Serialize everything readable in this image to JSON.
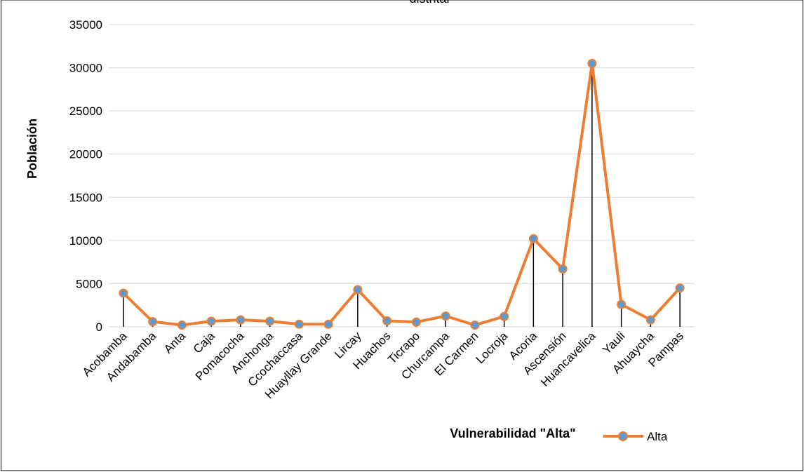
{
  "chart_data": {
    "type": "line",
    "title": "distrital",
    "xlabel": "Vulnerabilidad \"Alta\"",
    "ylabel": "Población",
    "ylim": [
      0,
      35000
    ],
    "yticks": [
      "0",
      "5000",
      "10000",
      "15000",
      "20000",
      "25000",
      "30000",
      "35000"
    ],
    "grid": true,
    "legend_position": "bottom-right",
    "categories": [
      "Acobamba",
      "Andabamba",
      "Anta",
      "Caja",
      "Pomacocha",
      "Anchonga",
      "Ccochaccasa",
      "Huayllay Grande",
      "Lircay",
      "Huachos",
      "Ticrapo",
      "Churcampa",
      "El Carmen",
      "Locroja",
      "Acoria",
      "Ascensión",
      "Huancavelica",
      "Yauli",
      "Ahuaycha",
      "Pampas"
    ],
    "series": [
      {
        "name": "Alta",
        "values": [
          3900,
          600,
          200,
          650,
          800,
          650,
          300,
          300,
          4300,
          700,
          550,
          1250,
          200,
          1200,
          10200,
          6700,
          30500,
          2600,
          800,
          4500
        ]
      }
    ],
    "colors": {
      "line": "#ED7D31",
      "marker": "#5B9BD5",
      "drop_line": "#000000",
      "grid": "#D9D9D9"
    }
  }
}
